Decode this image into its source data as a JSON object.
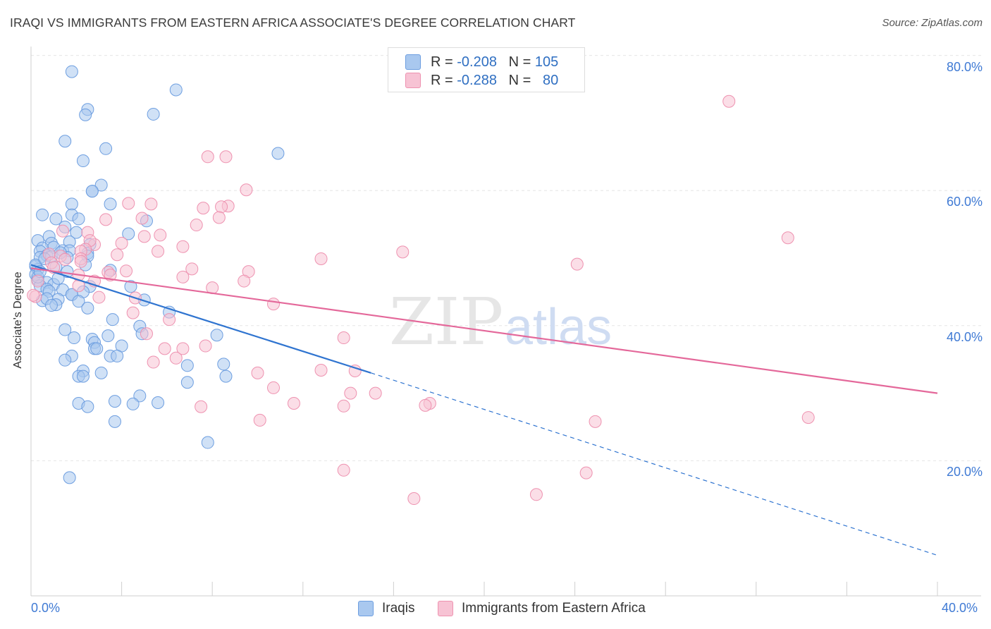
{
  "title": "IRAQI VS IMMIGRANTS FROM EASTERN AFRICA ASSOCIATE'S DEGREE CORRELATION CHART",
  "source": "Source: ZipAtlas.com",
  "watermark": {
    "zip": "ZIP",
    "atlas": "atlas"
  },
  "legend_top": [
    {
      "r_label": "R =",
      "r_value": "-0.208",
      "n_label": "N =",
      "n_value": "105"
    },
    {
      "r_label": "R =",
      "r_value": "-0.288",
      "n_label": "N =",
      "n_value": "80"
    }
  ],
  "legend_bottom": [
    "Iraqis",
    "Immigrants from Eastern Africa"
  ],
  "colors": {
    "blue_fill": "#a9c8ef",
    "blue_stroke": "#6d9ee0",
    "blue_line": "#2f74d0",
    "pink_fill": "#f7c3d4",
    "pink_stroke": "#ee92b0",
    "pink_line": "#e4689a",
    "grid": "#e5e5e5",
    "tick_text": "#3f7ad4"
  },
  "chart_data": {
    "type": "scatter",
    "title": "IRAQI VS IMMIGRANTS FROM EASTERN AFRICA ASSOCIATE'S DEGREE CORRELATION CHART",
    "xlabel": "",
    "ylabel": "Associate's Degree",
    "xlim": [
      0,
      40
    ],
    "ylim": [
      0,
      85
    ],
    "x_ticks": [
      "0.0%",
      "40.0%"
    ],
    "y_ticks": [
      "20.0%",
      "40.0%",
      "60.0%",
      "80.0%"
    ],
    "grid": true,
    "legend_placement": "top-center",
    "series": [
      {
        "name": "Iraqis",
        "color": "#6d9ee0",
        "trend": {
          "x": [
            0,
            15
          ],
          "y": [
            49.0,
            33.0
          ],
          "dash_to": [
            40,
            6.0
          ]
        },
        "points": [
          [
            1.8,
            77.6
          ],
          [
            6.4,
            74.9
          ],
          [
            2.5,
            72
          ],
          [
            2.4,
            71.2
          ],
          [
            5.4,
            71.3
          ],
          [
            1.5,
            67.3
          ],
          [
            3.3,
            66.2
          ],
          [
            10.9,
            65.5
          ],
          [
            2.3,
            64.4
          ],
          [
            3.1,
            60.8
          ],
          [
            2.7,
            59.9
          ],
          [
            2.7,
            59.9
          ],
          [
            3.5,
            58
          ],
          [
            1.8,
            58
          ],
          [
            0.5,
            56.4
          ],
          [
            1.8,
            56.4
          ],
          [
            2.1,
            55.8
          ],
          [
            1.1,
            55.8
          ],
          [
            5.1,
            55.5
          ],
          [
            1.5,
            54.6
          ],
          [
            2.0,
            53.8
          ],
          [
            4.3,
            53.6
          ],
          [
            0.8,
            53.2
          ],
          [
            0.3,
            52.6
          ],
          [
            1.7,
            52.4
          ],
          [
            0.9,
            52.2
          ],
          [
            2.6,
            52.0
          ],
          [
            1.0,
            51.6
          ],
          [
            0.5,
            51.5
          ],
          [
            0.4,
            51.0
          ],
          [
            1.4,
            51.1
          ],
          [
            1.7,
            51.1
          ],
          [
            2.5,
            50.7
          ],
          [
            0.7,
            50.4
          ],
          [
            0.4,
            50.1
          ],
          [
            0.9,
            50.2
          ],
          [
            2.5,
            50.3
          ],
          [
            1.6,
            50.1
          ],
          [
            0.2,
            48.8
          ],
          [
            0.3,
            48.3
          ],
          [
            1.1,
            48.7
          ],
          [
            3.5,
            48.2
          ],
          [
            0.2,
            47.6
          ],
          [
            1.6,
            48.0
          ],
          [
            0.3,
            46.8
          ],
          [
            0.7,
            46.4
          ],
          [
            0.4,
            45.9
          ],
          [
            1.0,
            46.1
          ],
          [
            2.6,
            45.8
          ],
          [
            0.7,
            45.4
          ],
          [
            0.8,
            45.1
          ],
          [
            4.4,
            45.8
          ],
          [
            1.4,
            45.3
          ],
          [
            2.3,
            45.0
          ],
          [
            1.8,
            44.6
          ],
          [
            1.8,
            44.6
          ],
          [
            0.5,
            43.7
          ],
          [
            1.2,
            43.9
          ],
          [
            0.7,
            44.0
          ],
          [
            2.1,
            43.6
          ],
          [
            5.0,
            43.8
          ],
          [
            1.1,
            43.1
          ],
          [
            0.9,
            43.0
          ],
          [
            2.5,
            42.6
          ],
          [
            6.1,
            42.0
          ],
          [
            3.6,
            40.9
          ],
          [
            4.8,
            39.9
          ],
          [
            1.5,
            39.4
          ],
          [
            4.9,
            38.8
          ],
          [
            8.2,
            38.6
          ],
          [
            3.4,
            38.5
          ],
          [
            2.7,
            38.0
          ],
          [
            1.9,
            38.2
          ],
          [
            2.8,
            37.5
          ],
          [
            4.0,
            37.0
          ],
          [
            2.8,
            36.6
          ],
          [
            2.9,
            36.6
          ],
          [
            1.8,
            35.5
          ],
          [
            3.5,
            35.5
          ],
          [
            3.8,
            35.5
          ],
          [
            1.5,
            34.9
          ],
          [
            6.9,
            34.1
          ],
          [
            8.5,
            34.3
          ],
          [
            3.1,
            33.0
          ],
          [
            2.3,
            33.3
          ],
          [
            2.1,
            32.5
          ],
          [
            2.3,
            32.5
          ],
          [
            8.6,
            32.5
          ],
          [
            6.9,
            31.6
          ],
          [
            4.8,
            29.6
          ],
          [
            3.7,
            28.8
          ],
          [
            5.6,
            28.6
          ],
          [
            2.1,
            28.5
          ],
          [
            4.5,
            28.4
          ],
          [
            2.5,
            28.0
          ],
          [
            3.7,
            25.8
          ],
          [
            7.8,
            22.7
          ],
          [
            1.7,
            17.5
          ],
          [
            0.2,
            49.0
          ],
          [
            0.3,
            47.2
          ],
          [
            0.6,
            49.9
          ],
          [
            1.3,
            50.8
          ],
          [
            2.4,
            49.0
          ],
          [
            1.2,
            47.0
          ],
          [
            0.4,
            48.0
          ]
        ]
      },
      {
        "name": "Immigrants from Eastern Africa",
        "color": "#ee92b0",
        "trend": {
          "x": [
            0,
            40
          ],
          "y": [
            48.5,
            30.0
          ]
        },
        "points": [
          [
            30.8,
            73.2
          ],
          [
            7.8,
            65.0
          ],
          [
            8.6,
            65.0
          ],
          [
            9.5,
            60.1
          ],
          [
            4.3,
            58.1
          ],
          [
            5.3,
            58.0
          ],
          [
            8.7,
            57.7
          ],
          [
            8.4,
            57.6
          ],
          [
            7.6,
            57.4
          ],
          [
            3.3,
            55.7
          ],
          [
            8.3,
            56.0
          ],
          [
            4.9,
            55.9
          ],
          [
            7.3,
            54.9
          ],
          [
            5.7,
            53.4
          ],
          [
            5.0,
            53.2
          ],
          [
            1.4,
            54.0
          ],
          [
            33.4,
            53.0
          ],
          [
            2.5,
            53.8
          ],
          [
            4.0,
            52.2
          ],
          [
            2.8,
            52.0
          ],
          [
            6.7,
            51.7
          ],
          [
            2.6,
            52.6
          ],
          [
            2.4,
            51.3
          ],
          [
            5.6,
            51.0
          ],
          [
            2.2,
            51.0
          ],
          [
            16.4,
            50.9
          ],
          [
            0.8,
            50.6
          ],
          [
            3.8,
            50.5
          ],
          [
            1.3,
            50.3
          ],
          [
            12.8,
            49.9
          ],
          [
            2.2,
            49.9
          ],
          [
            1.5,
            49.8
          ],
          [
            2.2,
            49.5
          ],
          [
            24.1,
            49.1
          ],
          [
            0.9,
            49.3
          ],
          [
            7.1,
            48.4
          ],
          [
            1.0,
            48.6
          ],
          [
            9.6,
            48.0
          ],
          [
            4.2,
            48.1
          ],
          [
            3.4,
            47.9
          ],
          [
            3.5,
            47.5
          ],
          [
            6.7,
            47.2
          ],
          [
            2.1,
            47.5
          ],
          [
            9.4,
            46.6
          ],
          [
            2.8,
            46.6
          ],
          [
            2.1,
            45.9
          ],
          [
            8.0,
            45.6
          ],
          [
            0.2,
            44.3
          ],
          [
            3.0,
            44.2
          ],
          [
            4.6,
            44.1
          ],
          [
            10.7,
            43.2
          ],
          [
            4.5,
            41.9
          ],
          [
            6.1,
            40.9
          ],
          [
            5.1,
            38.8
          ],
          [
            13.8,
            38.2
          ],
          [
            7.7,
            37.0
          ],
          [
            5.9,
            36.6
          ],
          [
            6.7,
            36.6
          ],
          [
            6.4,
            35.2
          ],
          [
            5.4,
            34.6
          ],
          [
            12.8,
            33.4
          ],
          [
            14.3,
            33.3
          ],
          [
            10.0,
            33.0
          ],
          [
            10.7,
            30.8
          ],
          [
            14.1,
            30.0
          ],
          [
            15.2,
            30.0
          ],
          [
            11.6,
            28.5
          ],
          [
            17.6,
            28.5
          ],
          [
            17.4,
            28.2
          ],
          [
            7.5,
            28.0
          ],
          [
            13.8,
            28.1
          ],
          [
            34.3,
            26.4
          ],
          [
            10.1,
            26.0
          ],
          [
            24.9,
            25.8
          ],
          [
            13.8,
            18.6
          ],
          [
            24.5,
            18.2
          ],
          [
            16.9,
            14.4
          ],
          [
            22.3,
            15.0
          ],
          [
            0.1,
            44.5
          ],
          [
            0.3,
            46.6
          ]
        ]
      }
    ]
  }
}
